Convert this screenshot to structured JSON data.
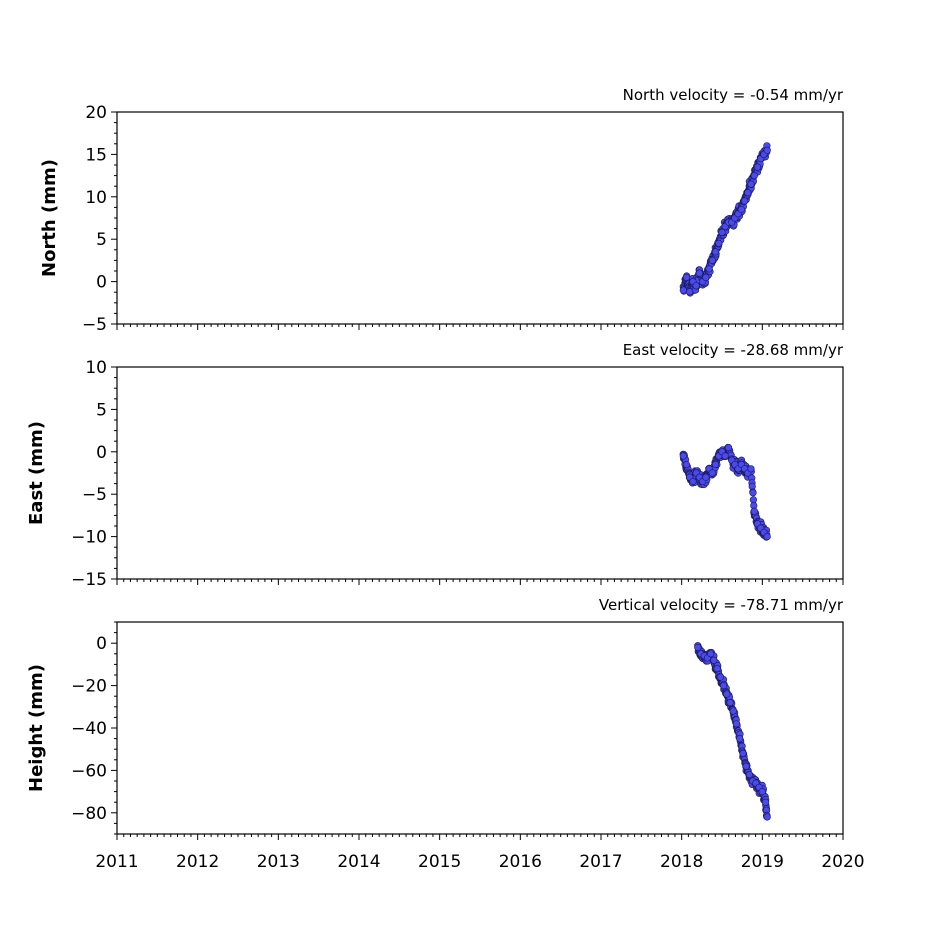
{
  "chart_data": [
    {
      "type": "scatter",
      "title": "North velocity = -0.54 mm/yr",
      "ylabel": "North (mm)",
      "xlim": [
        2011,
        2020
      ],
      "ylim": [
        -5,
        20
      ],
      "yticks": [
        -5,
        0,
        5,
        10,
        15,
        20
      ],
      "ytick_labels": [
        "−5",
        "0",
        "5",
        "10",
        "15",
        "20"
      ],
      "x": [
        2018.02,
        2018.06,
        2018.1,
        2018.14,
        2018.18,
        2018.22,
        2018.26,
        2018.3,
        2018.34,
        2018.38,
        2018.42,
        2018.46,
        2018.5,
        2018.54,
        2018.58,
        2018.62,
        2018.66,
        2018.7,
        2018.74,
        2018.78,
        2018.82,
        2018.86,
        2018.9,
        2018.94,
        2018.98,
        2019.02,
        2019.06
      ],
      "y": [
        -1.0,
        0.5,
        -1.2,
        0.0,
        -0.5,
        1.0,
        0.0,
        0.5,
        1.5,
        2.5,
        3.5,
        4.5,
        5.8,
        6.5,
        7.0,
        7.0,
        7.5,
        8.0,
        8.5,
        9.5,
        10.5,
        11.5,
        12.5,
        13.5,
        14.5,
        15.0,
        15.5
      ],
      "color": "#4a4af0"
    },
    {
      "type": "scatter",
      "title": "East velocity = -28.68 mm/yr",
      "ylabel": "East (mm)",
      "xlim": [
        2011,
        2020
      ],
      "ylim": [
        -15,
        10
      ],
      "yticks": [
        -15,
        -10,
        -5,
        0,
        5,
        10
      ],
      "ytick_labels": [
        "−15",
        "−10",
        "−5",
        "0",
        "5",
        "10"
      ],
      "x": [
        2018.02,
        2018.06,
        2018.1,
        2018.14,
        2018.18,
        2018.22,
        2018.26,
        2018.3,
        2018.34,
        2018.38,
        2018.42,
        2018.46,
        2018.5,
        2018.54,
        2018.58,
        2018.62,
        2018.66,
        2018.7,
        2018.74,
        2018.78,
        2018.82,
        2018.86,
        2018.9,
        2018.94,
        2018.98,
        2019.02,
        2019.06
      ],
      "y": [
        -0.5,
        -1.5,
        -3.0,
        -3.5,
        -2.5,
        -3.0,
        -3.5,
        -3.0,
        -2.0,
        -2.5,
        -1.5,
        -0.5,
        0.0,
        -0.5,
        0.5,
        -1.0,
        -1.5,
        -2.0,
        -1.5,
        -2.0,
        -2.5,
        -2.0,
        -7.0,
        -8.5,
        -9.0,
        -9.5,
        -10.0
      ],
      "color": "#4a4af0"
    },
    {
      "type": "scatter",
      "title": "Vertical velocity = -78.71 mm/yr",
      "ylabel": "Height (mm)",
      "xlim": [
        2011,
        2020
      ],
      "ylim": [
        -90,
        10
      ],
      "yticks": [
        -80,
        -60,
        -40,
        -20,
        0
      ],
      "ytick_labels": [
        "−80",
        "−60",
        "−40",
        "−20",
        "0"
      ],
      "x": [
        2018.2,
        2018.24,
        2018.28,
        2018.32,
        2018.36,
        2018.4,
        2018.44,
        2018.48,
        2018.52,
        2018.56,
        2018.6,
        2018.64,
        2018.68,
        2018.72,
        2018.76,
        2018.8,
        2018.84,
        2018.88,
        2018.92,
        2018.96,
        2019.0,
        2019.04,
        2019.06
      ],
      "y": [
        -2.0,
        -5.0,
        -6.0,
        -7.0,
        -5.0,
        -8.0,
        -12.0,
        -16.0,
        -20.0,
        -24.0,
        -28.0,
        -32.0,
        -38.0,
        -45.0,
        -52.0,
        -58.0,
        -62.0,
        -65.0,
        -66.0,
        -68.0,
        -70.0,
        -75.0,
        -82.0
      ],
      "color": "#4a4af0"
    }
  ],
  "x_axis": {
    "ticks": [
      2011,
      2012,
      2013,
      2014,
      2015,
      2016,
      2017,
      2018,
      2019,
      2020
    ],
    "labels": [
      "2011",
      "2012",
      "2013",
      "2014",
      "2015",
      "2016",
      "2017",
      "2018",
      "2019",
      "2020"
    ]
  }
}
